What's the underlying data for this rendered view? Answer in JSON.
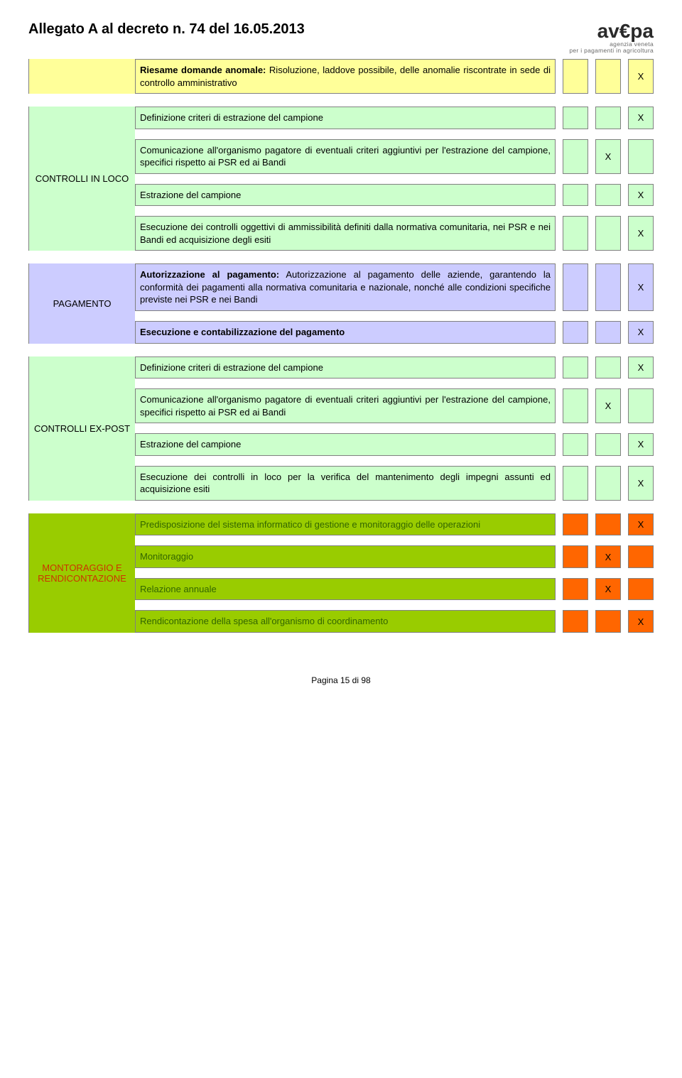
{
  "header": {
    "title": "Allegato A al decreto n. 74 del 16.05.2013",
    "logo_main": "av€pa",
    "logo_sub1": "agenzia veneta",
    "logo_sub2": "per i pagamenti in agricoltura"
  },
  "footer": "Pagina 15 di 98",
  "mark": "X",
  "sections": {
    "riesame": {
      "label": "",
      "rows": [
        {
          "text": "Riesame domande anomale: Risoluzione, laddove possibile, delle anomalie riscontrate in sede di controllo amministrativo",
          "bold_prefix": "Riesame domande anomale:",
          "c1": "",
          "c2": "",
          "c3": "X"
        }
      ]
    },
    "controlli_in_loco": {
      "label": "CONTROLLI IN LOCO",
      "rows": [
        {
          "text": "Definizione criteri di estrazione del campione",
          "c1": "",
          "c2": "",
          "c3": "X"
        },
        {
          "text": "Comunicazione all'organismo pagatore di eventuali criteri aggiuntivi per l'estrazione del campione, specifici rispetto ai PSR ed ai Bandi",
          "c1": "",
          "c2": "X",
          "c3": ""
        },
        {
          "text": "Estrazione del campione",
          "c1": "",
          "c2": "",
          "c3": "X"
        },
        {
          "text": "Esecuzione dei controlli oggettivi di ammissibilità definiti dalla normativa comunitaria, nei PSR e nei Bandi ed acquisizione degli esiti",
          "c1": "",
          "c2": "",
          "c3": "X"
        }
      ]
    },
    "pagamento": {
      "label": "PAGAMENTO",
      "rows": [
        {
          "text": "Autorizzazione al pagamento: Autorizzazione al pagamento delle aziende, garantendo la conformità dei pagamenti alla normativa comunitaria e nazionale, nonché alle condizioni specifiche previste nei PSR e nei Bandi",
          "bold_prefix": "Autorizzazione al pagamento:",
          "c1": "",
          "c2": "",
          "c3": "X"
        },
        {
          "text": "Esecuzione e contabilizzazione del pagamento",
          "bold_all": true,
          "c1": "",
          "c2": "",
          "c3": "X"
        }
      ]
    },
    "controlli_expost": {
      "label": "CONTROLLI EX-POST",
      "rows": [
        {
          "text": "Definizione criteri di estrazione del campione",
          "c1": "",
          "c2": "",
          "c3": "X"
        },
        {
          "text": "Comunicazione all'organismo pagatore di eventuali criteri aggiuntivi per l'estrazione del campione, specifici rispetto ai PSR ed ai Bandi",
          "c1": "",
          "c2": "X",
          "c3": ""
        },
        {
          "text": "Estrazione del campione",
          "c1": "",
          "c2": "",
          "c3": "X"
        },
        {
          "text": "Esecuzione dei controlli in loco per la verifica del mantenimento degli impegni assunti ed acquisizione esiti",
          "c1": "",
          "c2": "",
          "c3": "X"
        }
      ]
    },
    "monitoraggio": {
      "label": "MONTORAGGIO E RENDICONTAZIONE",
      "rows": [
        {
          "text": "Predisposizione del sistema informatico di gestione e monitoraggio delle operazioni",
          "c1": "",
          "c2": "",
          "c3": "X"
        },
        {
          "text": "Monitoraggio",
          "c1": "",
          "c2": "X",
          "c3": ""
        },
        {
          "text": "Relazione annuale",
          "c1": "",
          "c2": "X",
          "c3": ""
        },
        {
          "text": "Rendicontazione della spesa all'organismo di coordinamento",
          "c1": "",
          "c2": "",
          "c3": "X"
        }
      ]
    }
  },
  "colors": {
    "yellow": "#ffff99",
    "lightgreen": "#ccffcc",
    "lavender": "#ccccff",
    "olive": "#99cc00",
    "orange": "#ff6600"
  }
}
